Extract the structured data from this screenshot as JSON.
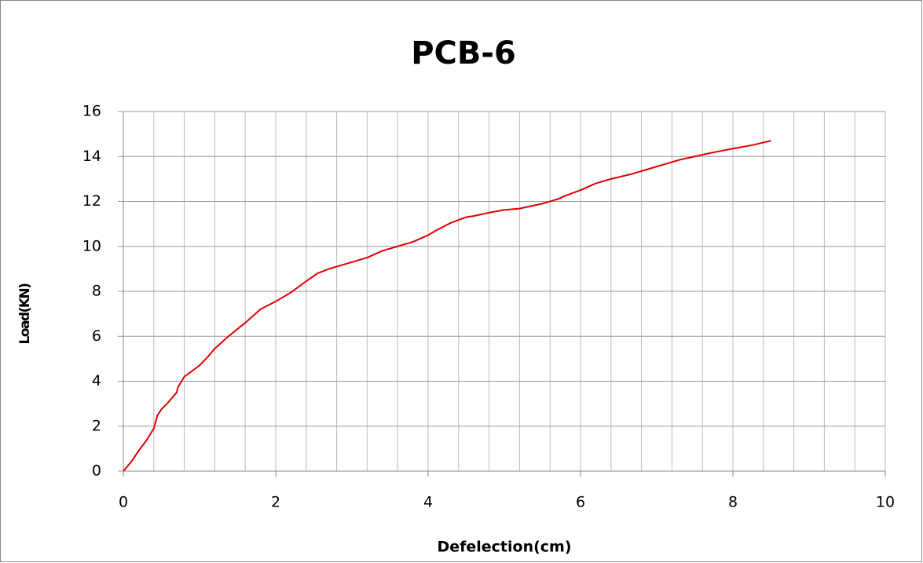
{
  "chart_data": {
    "type": "line",
    "title": "PCB-6",
    "xlabel": "Defelection(cm)",
    "ylabel": "Load(KN)",
    "x": [
      0,
      0.1,
      0.2,
      0.3,
      0.4,
      0.45,
      0.5,
      0.6,
      0.7,
      0.72,
      0.8,
      0.9,
      1.0,
      1.1,
      1.2,
      1.38,
      1.6,
      1.8,
      2.0,
      2.2,
      2.4,
      2.55,
      2.7,
      2.9,
      3.2,
      3.4,
      3.6,
      3.8,
      4.0,
      4.1,
      4.3,
      4.5,
      4.6,
      4.8,
      5.0,
      5.2,
      5.5,
      5.7,
      5.8,
      6.0,
      6.2,
      6.4,
      6.65,
      6.9,
      7.3,
      7.5,
      7.7,
      8.0,
      8.25,
      8.5
    ],
    "series": [
      {
        "color": "#e00000",
        "values": [
          0,
          0.4,
          0.9,
          1.35,
          1.9,
          2.5,
          2.75,
          3.1,
          3.5,
          3.75,
          4.2,
          4.45,
          4.7,
          5.05,
          5.45,
          6.0,
          6.6,
          7.2,
          7.55,
          7.95,
          8.45,
          8.8,
          9.0,
          9.2,
          9.5,
          9.8,
          10.0,
          10.2,
          10.5,
          10.7,
          11.05,
          11.3,
          11.35,
          11.5,
          11.62,
          11.68,
          11.9,
          12.1,
          12.25,
          12.5,
          12.8,
          13.0,
          13.2,
          13.45,
          13.85,
          14.0,
          14.15,
          14.35,
          14.5,
          14.7
        ]
      }
    ],
    "xlim": [
      0,
      10
    ],
    "xticks": [
      0,
      2,
      4,
      6,
      8,
      10
    ],
    "ylim": [
      0,
      16
    ],
    "yticks": [
      0,
      2,
      4,
      6,
      8,
      10,
      12,
      14,
      16
    ],
    "xgrid": [
      0.4,
      0.8,
      1.2,
      1.6,
      2,
      2.4,
      2.8,
      3.2,
      3.6,
      4,
      4.4,
      4.8,
      5.2,
      5.6,
      6,
      6.4,
      6.8,
      7.2,
      7.6,
      8,
      8.4,
      8.8,
      9.2,
      9.6,
      10
    ],
    "grid": true
  }
}
